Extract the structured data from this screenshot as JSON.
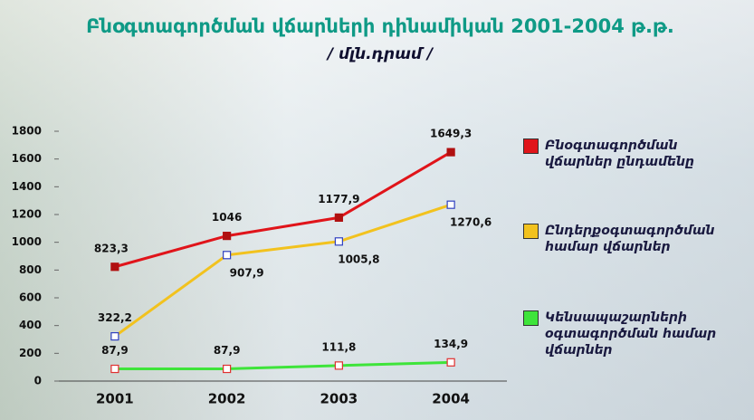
{
  "chart_data": {
    "type": "line",
    "title": "Բնօգտագործման վճարների դինամիկան 2001-2004 թ.թ.",
    "subtitle": "/ մլն.դրամ /",
    "categories": [
      "2001",
      "2002",
      "2003",
      "2004"
    ],
    "series": [
      {
        "name": "Բնօգտագործման վճարներ ընդամենը",
        "color": "#e0141a",
        "marker_color": "#b01010",
        "marker_fill": "#b01010",
        "values": [
          823.3,
          1046,
          1177.9,
          1649.3
        ],
        "value_labels": [
          "823,3",
          "1046",
          "1177,9",
          "1649,3"
        ]
      },
      {
        "name": "Ընդերքօգտագործման համար վճարներ",
        "color": "#f2c21e",
        "marker_color": "#3040c0",
        "marker_fill": "#ffffff",
        "values": [
          322.2,
          907.9,
          1005.8,
          1270.6
        ],
        "value_labels": [
          "322,2",
          "907,9",
          "1005,8",
          "1270,6"
        ]
      },
      {
        "name": "Կենսապաշարների օգտագործման համար վճարներ",
        "color": "#3ee43a",
        "marker_color": "#e03030",
        "marker_fill": "#ffffff",
        "values": [
          87.9,
          87.9,
          111.8,
          134.9
        ],
        "value_labels": [
          "87,9",
          "87,9",
          "111,8",
          "134,9"
        ]
      }
    ],
    "ylim": [
      0,
      1800
    ],
    "yticks": [
      0,
      200,
      400,
      600,
      800,
      1000,
      1200,
      1400,
      1600,
      1800
    ]
  }
}
